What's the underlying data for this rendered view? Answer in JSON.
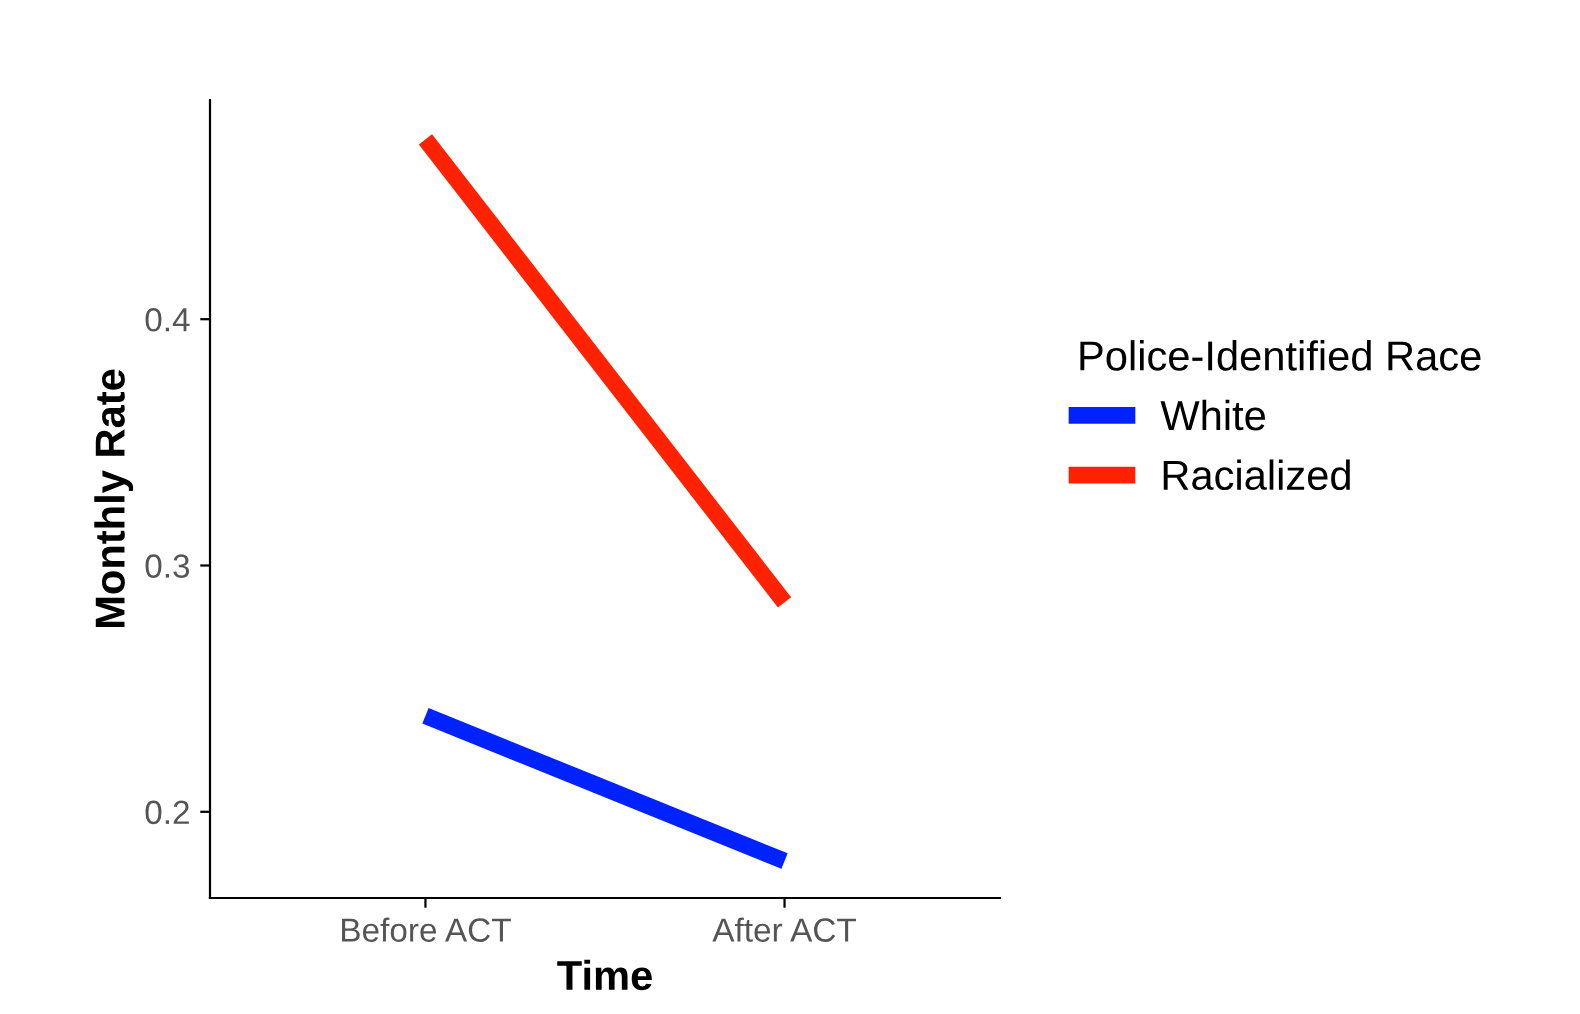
{
  "chart_data": {
    "type": "line",
    "xlabel": "Time",
    "ylabel": "Monthly Rate",
    "legend_title": "Police-Identified Race",
    "categories": [
      "Before ACT",
      "After ACT"
    ],
    "series": [
      {
        "name": "White",
        "color": "#0022ff",
        "values": [
          0.239,
          0.18
        ]
      },
      {
        "name": "Racialized",
        "color": "#ff2200",
        "values": [
          0.473,
          0.285
        ]
      }
    ],
    "ylim": [
      0.165,
      0.489
    ],
    "yticks": [
      0.2,
      0.3,
      0.4
    ],
    "grid": false,
    "legend": "right",
    "marker": "none",
    "line_style": "solid"
  }
}
